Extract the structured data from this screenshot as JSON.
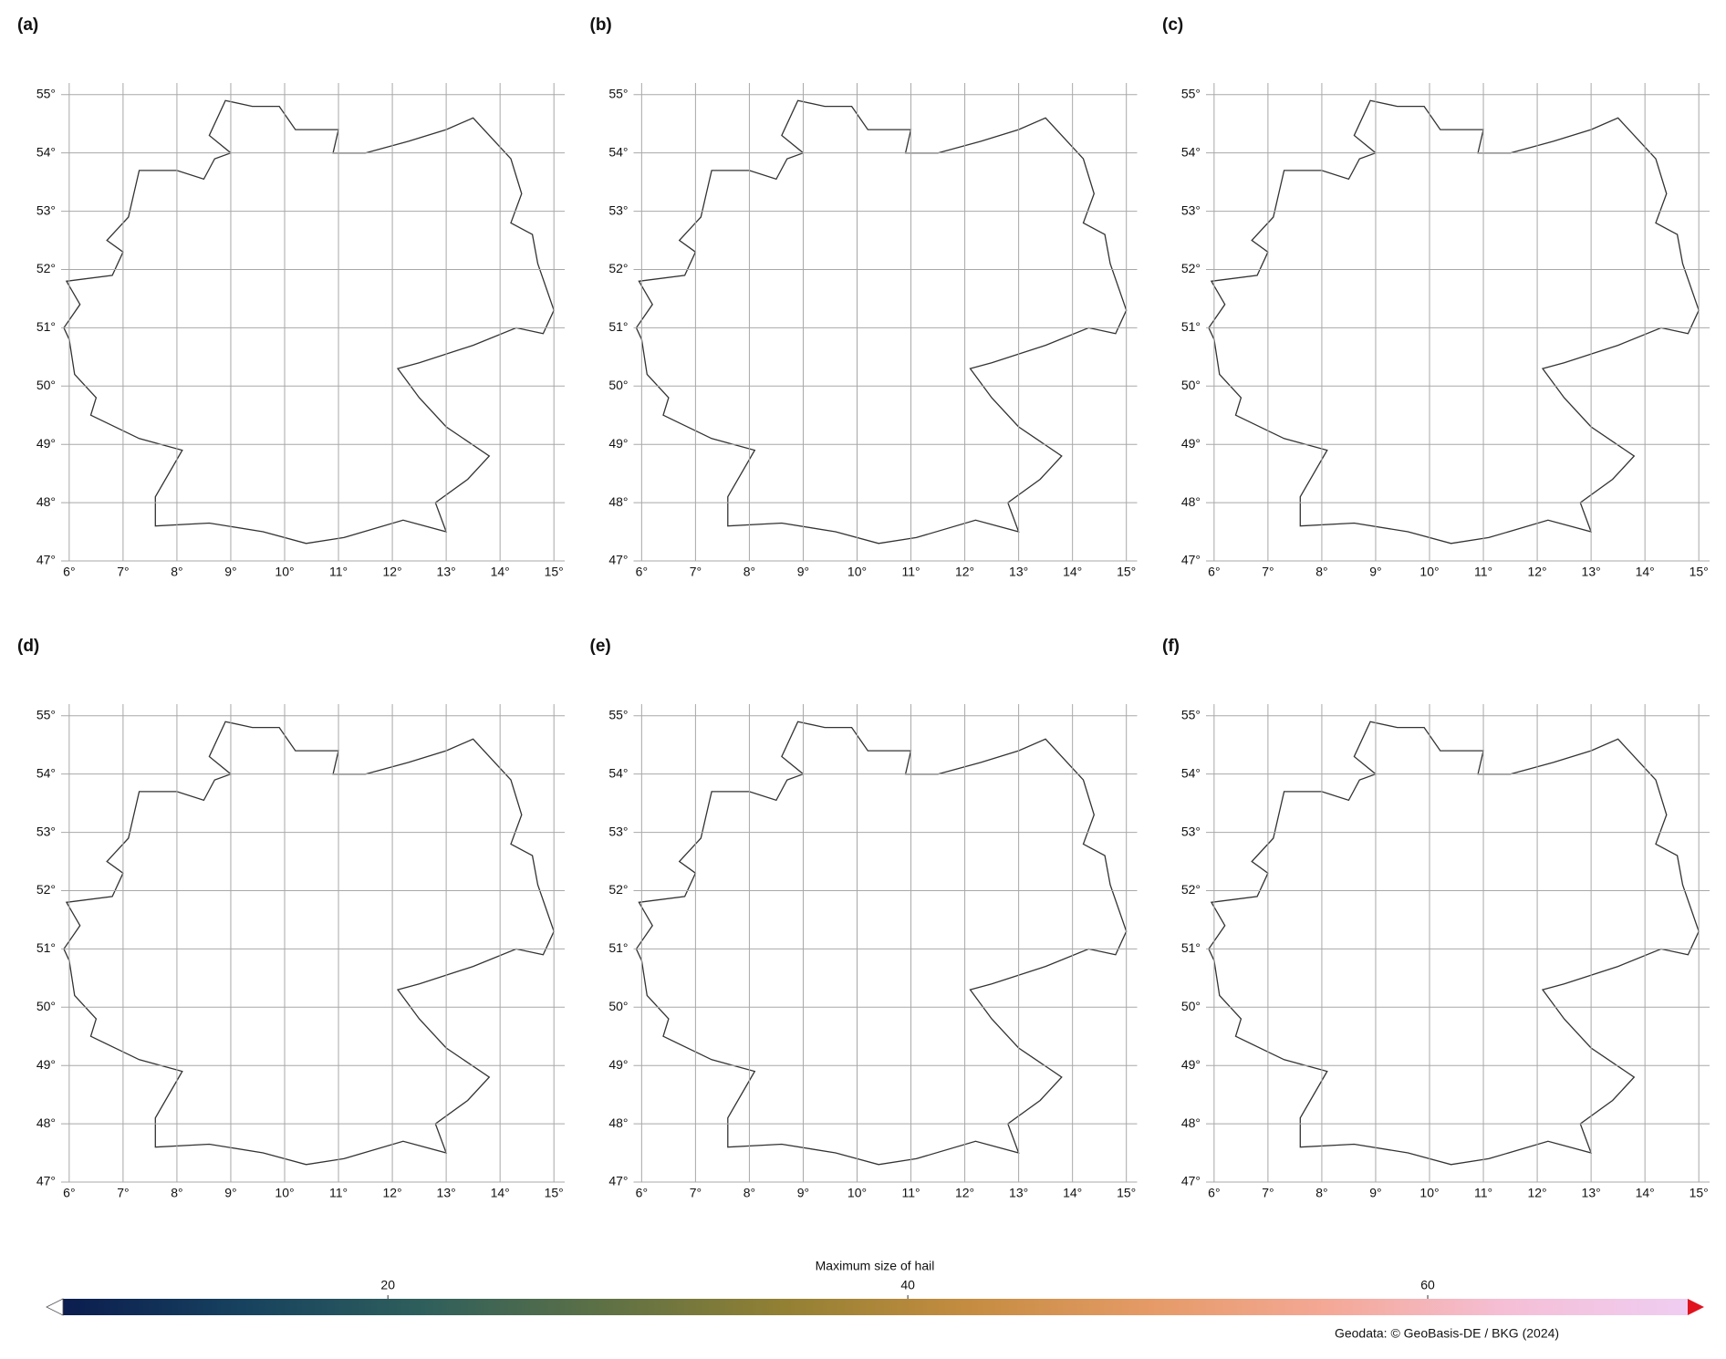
{
  "panels": [
    {
      "label": "(a)"
    },
    {
      "label": "(b)"
    },
    {
      "label": "(c)"
    },
    {
      "label": "(d)"
    },
    {
      "label": "(e)"
    },
    {
      "label": "(f)"
    }
  ],
  "map": {
    "xlim": [
      5.85,
      15.2
    ],
    "ylim": [
      47,
      55.2
    ],
    "xticks": [
      {
        "value": 6,
        "label": "6°"
      },
      {
        "value": 7,
        "label": "7°"
      },
      {
        "value": 8,
        "label": "8°"
      },
      {
        "value": 9,
        "label": "9°"
      },
      {
        "value": 10,
        "label": "10°"
      },
      {
        "value": 11,
        "label": "11°"
      },
      {
        "value": 12,
        "label": "12°"
      },
      {
        "value": 13,
        "label": "13°"
      },
      {
        "value": 14,
        "label": "14°"
      },
      {
        "value": 15,
        "label": "15°"
      }
    ],
    "yticks": [
      {
        "value": 47,
        "label": "47°"
      },
      {
        "value": 48,
        "label": "48°"
      },
      {
        "value": 49,
        "label": "49°"
      },
      {
        "value": 50,
        "label": "50°"
      },
      {
        "value": 51,
        "label": "51°"
      },
      {
        "value": 52,
        "label": "52°"
      },
      {
        "value": 53,
        "label": "53°"
      },
      {
        "value": 54,
        "label": "54°"
      },
      {
        "value": 55,
        "label": "55°"
      }
    ],
    "grid": true
  },
  "colorbar": {
    "title": "Maximum size of hail",
    "clim": [
      7.5,
      70
    ],
    "ticks": [
      20,
      40,
      60
    ],
    "colors": [
      "#0b1d4f",
      "#17425f",
      "#2f5f5c",
      "#5e7145",
      "#938033",
      "#c48c40",
      "#e59a66",
      "#f4a896",
      "#f5bfd6",
      "#efcdf2"
    ],
    "under_color": "#ffffff",
    "over_color": "#e0141e"
  },
  "credit": "Geodata: © GeoBasis-DE / BKG (2024)"
}
